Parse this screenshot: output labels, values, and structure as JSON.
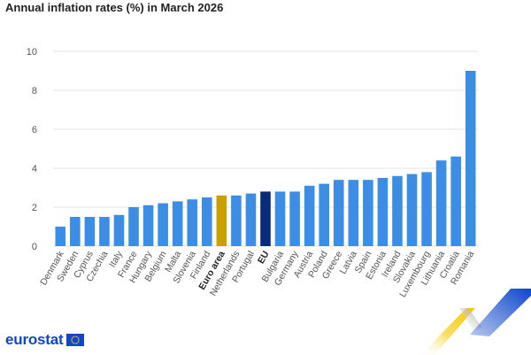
{
  "chart_data": {
    "type": "bar",
    "title": "Annual inflation rates (%) in March 2026",
    "xlabel": "",
    "ylabel": "",
    "ylim": [
      0,
      10
    ],
    "yticks": [
      0,
      2,
      4,
      6,
      8,
      10
    ],
    "grid": true,
    "categories": [
      "Denmark",
      "Sweden",
      "Cyprus",
      "Czechia",
      "Italy",
      "France",
      "Hungary",
      "Belgium",
      "Malta",
      "Slovenia",
      "Finland",
      "Euro area",
      "Netherlands",
      "Portugal",
      "EU",
      "Bulgaria",
      "Germany",
      "Austria",
      "Poland",
      "Greece",
      "Latvia",
      "Spain",
      "Estonia",
      "Ireland",
      "Slovakia",
      "Luxembourg",
      "Lithuania",
      "Croatia",
      "Romania"
    ],
    "values": [
      1.0,
      1.5,
      1.5,
      1.5,
      1.6,
      2.0,
      2.1,
      2.2,
      2.3,
      2.4,
      2.5,
      2.6,
      2.6,
      2.7,
      2.8,
      2.8,
      2.8,
      3.1,
      3.2,
      3.4,
      3.4,
      3.4,
      3.5,
      3.6,
      3.7,
      3.8,
      4.4,
      4.6,
      9.0
    ],
    "highlight": {
      "Euro area": "#c9a000",
      "EU": "#0a2b7a"
    },
    "bold_categories": [
      "Euro area",
      "EU"
    ]
  },
  "colors": {
    "bar": "#3c8ee5",
    "grid": "#e3e3e3",
    "axis_text": "#555555",
    "brand": "#0e47cb",
    "accent_yellow": "#f6c800"
  },
  "brand": {
    "logo_text": "eurostat"
  }
}
